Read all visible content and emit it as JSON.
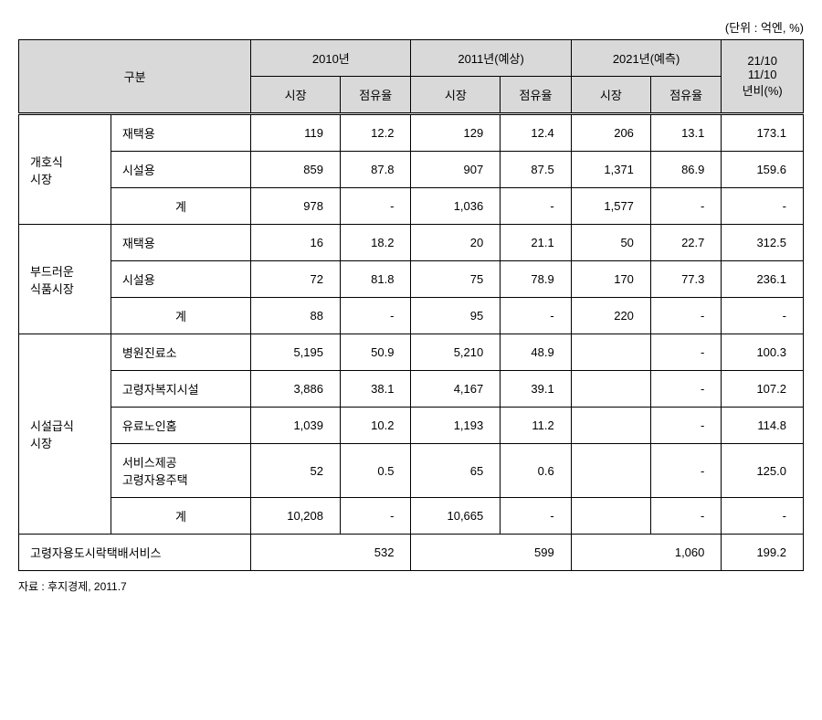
{
  "unit_label": "(단위 : 억엔, %)",
  "source_label": "자료 : 후지경제, 2011.7",
  "header": {
    "category": "구분",
    "y2010": "2010년",
    "y2011": "2011년(예상)",
    "y2021": "2021년(예측)",
    "ratio": "21/10\n11/10\n년비(%)",
    "market": "시장",
    "share": "점유율"
  },
  "groups": [
    {
      "name": "개호식\n시장",
      "rows": [
        {
          "label": "재택용",
          "m2010": "119",
          "s2010": "12.2",
          "m2011": "129",
          "s2011": "12.4",
          "m2021": "206",
          "s2021": "13.1",
          "ratio": "173.1"
        },
        {
          "label": "시설용",
          "m2010": "859",
          "s2010": "87.8",
          "m2011": "907",
          "s2011": "87.5",
          "m2021": "1,371",
          "s2021": "86.9",
          "ratio": "159.6"
        },
        {
          "label": "계",
          "is_sum": true,
          "m2010": "978",
          "s2010": "-",
          "m2011": "1,036",
          "s2011": "-",
          "m2021": "1,577",
          "s2021": "-",
          "ratio": "-"
        }
      ]
    },
    {
      "name": "부드러운\n식품시장",
      "rows": [
        {
          "label": "재택용",
          "m2010": "16",
          "s2010": "18.2",
          "m2011": "20",
          "s2011": "21.1",
          "m2021": "50",
          "s2021": "22.7",
          "ratio": "312.5"
        },
        {
          "label": "시설용",
          "m2010": "72",
          "s2010": "81.8",
          "m2011": "75",
          "s2011": "78.9",
          "m2021": "170",
          "s2021": "77.3",
          "ratio": "236.1"
        },
        {
          "label": "계",
          "is_sum": true,
          "m2010": "88",
          "s2010": "-",
          "m2011": "95",
          "s2011": "-",
          "m2021": "220",
          "s2021": "-",
          "ratio": "-"
        }
      ]
    },
    {
      "name": "시설급식\n시장",
      "rows": [
        {
          "label": "병원진료소",
          "m2010": "5,195",
          "s2010": "50.9",
          "m2011": "5,210",
          "s2011": "48.9",
          "m2021": "",
          "s2021": "-",
          "ratio": "100.3"
        },
        {
          "label": "고령자복지시설",
          "m2010": "3,886",
          "s2010": "38.1",
          "m2011": "4,167",
          "s2011": "39.1",
          "m2021": "",
          "s2021": "-",
          "ratio": "107.2"
        },
        {
          "label": "유료노인홈",
          "m2010": "1,039",
          "s2010": "10.2",
          "m2011": "1,193",
          "s2011": "11.2",
          "m2021": "",
          "s2021": "-",
          "ratio": "114.8"
        },
        {
          "label": "서비스제공\n고령자용주택",
          "m2010": "52",
          "s2010": "0.5",
          "m2011": "65",
          "s2011": "0.6",
          "m2021": "",
          "s2021": "-",
          "ratio": "125.0"
        },
        {
          "label": "계",
          "is_sum": true,
          "m2010": "10,208",
          "s2010": "-",
          "m2011": "10,665",
          "s2011": "-",
          "m2021": "",
          "s2021": "-",
          "ratio": "-"
        }
      ]
    }
  ],
  "footer_row": {
    "label": "고령자용도시락택배서비스",
    "v2010": "532",
    "v2011": "599",
    "v2021": "1,060",
    "ratio": "199.2"
  },
  "colors": {
    "header_bg": "#d9d9d9",
    "border": "#000000",
    "background": "#ffffff",
    "text": "#000000"
  },
  "column_widths": {
    "cat1": 90,
    "cat2": 120,
    "data": 85,
    "ratio": 85
  }
}
